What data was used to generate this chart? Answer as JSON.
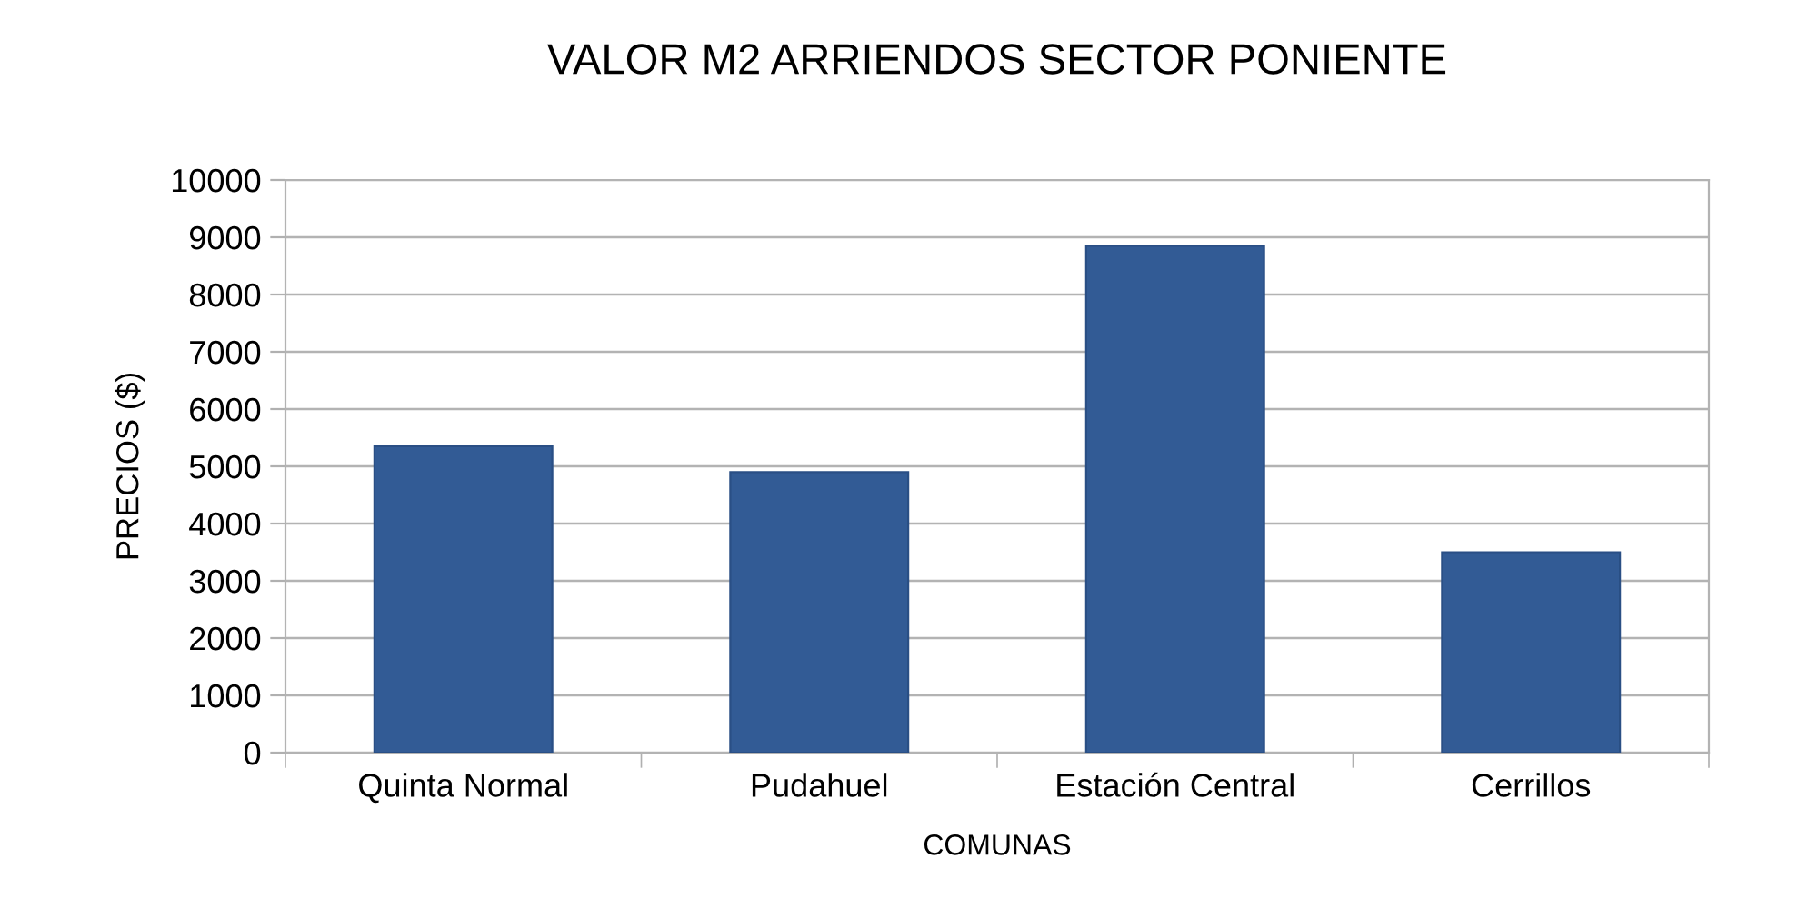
{
  "chart_data": {
    "type": "bar",
    "title": "VALOR M2 ARRIENDOS SECTOR PONIENTE",
    "xlabel": "COMUNAS",
    "ylabel": "PRECIOS ($)",
    "categories": [
      "Quinta Normal",
      "Pudahuel",
      "Estación Central",
      "Cerrillos"
    ],
    "values": [
      5350,
      4900,
      8850,
      3500
    ],
    "color": "#325b95",
    "ylim": [
      0,
      10000
    ],
    "yticks": [
      0,
      1000,
      2000,
      3000,
      4000,
      5000,
      6000,
      7000,
      8000,
      9000,
      10000
    ],
    "grid": "y",
    "legend": false
  }
}
